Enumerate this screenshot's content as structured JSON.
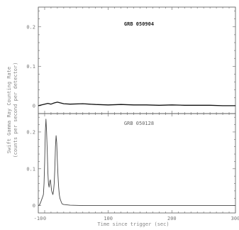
{
  "chart_data": [
    {
      "type": "line",
      "title": "GRB 050904",
      "xlim": [
        -10,
        300
      ],
      "ylim": [
        -0.02,
        0.25
      ],
      "yticks": [
        0,
        0.1,
        0.2
      ],
      "ytick_labels": [
        "0",
        "0.1",
        "0.2"
      ],
      "grid": false,
      "series": [
        {
          "name": "",
          "x": [
            -10,
            0,
            5,
            10,
            15,
            20,
            25,
            30,
            40,
            60,
            80,
            100,
            120,
            140,
            160,
            180,
            200,
            220,
            240,
            260,
            280,
            300
          ],
          "y": [
            0.0,
            0.004,
            0.006,
            0.004,
            0.007,
            0.009,
            0.007,
            0.005,
            0.004,
            0.005,
            0.003,
            0.002,
            0.003,
            0.002,
            0.002,
            0.001,
            0.002,
            0.001,
            0.001,
            0.001,
            0.0,
            0.0
          ]
        }
      ]
    },
    {
      "type": "line",
      "title": "GRB 050128",
      "xlim": [
        -10,
        300
      ],
      "ylim": [
        -0.02,
        0.25
      ],
      "yticks": [
        0,
        0.1,
        0.2
      ],
      "ytick_labels": [
        "0",
        "0.1",
        "0.2"
      ],
      "xticks": [
        -10,
        0,
        100,
        200,
        300
      ],
      "xtick_labels": [
        "-10",
        "0",
        "100",
        "200",
        "300"
      ],
      "grid": false,
      "series": [
        {
          "name": "",
          "x": [
            -10,
            -8,
            -6,
            -4,
            -2,
            -1,
            0,
            1,
            2,
            3,
            4,
            5,
            6,
            7,
            8,
            9,
            10,
            11,
            12,
            13,
            14,
            15,
            16,
            17,
            18,
            19,
            20,
            21,
            22,
            23,
            24,
            25,
            26,
            27,
            28,
            30,
            35,
            40,
            60,
            80,
            100,
            150,
            200,
            250,
            300
          ],
          "y": [
            0.0,
            0.002,
            0.01,
            0.02,
            0.03,
            0.06,
            0.12,
            0.2,
            0.235,
            0.2,
            0.15,
            0.09,
            0.06,
            0.05,
            0.065,
            0.07,
            0.055,
            0.04,
            0.035,
            0.03,
            0.04,
            0.06,
            0.1,
            0.16,
            0.19,
            0.17,
            0.12,
            0.08,
            0.05,
            0.03,
            0.02,
            0.015,
            0.01,
            0.006,
            0.004,
            0.003,
            0.002,
            0.001,
            0.0,
            0.0,
            0.0,
            0.0,
            0.0,
            0.0,
            0.0
          ]
        }
      ]
    }
  ],
  "ylabel_line1": "Swift Gamma Ray Counting Rate",
  "ylabel_line2": "(counts per second per detector)",
  "xlabel": "Time since trigger (sec)"
}
